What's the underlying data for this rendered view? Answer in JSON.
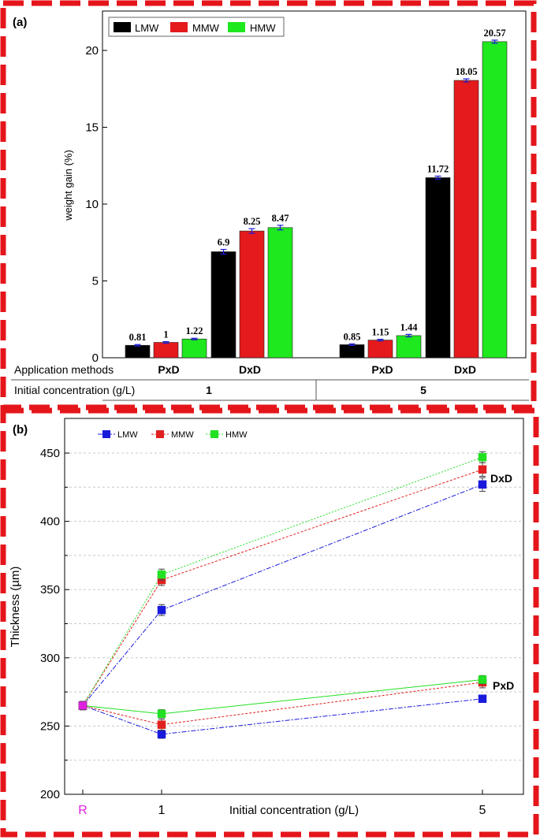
{
  "colors": {
    "frame": "#e4161b",
    "LMW": "#000000",
    "MMW": "#e41a1c",
    "HMW": "#1ee81e",
    "LMW_b": "#1a1adc",
    "MMW_b": "#e0201e",
    "HMW_b": "#22e022",
    "errorbar": "#1a1adc",
    "R_label": "#e020e0"
  },
  "panel_a": {
    "label": "(a)",
    "row_labels": {
      "methods": "Application methods",
      "concentration": "Initial concentration (g/L)"
    },
    "methods": [
      "PxD",
      "DxD",
      "PxD",
      "DxD"
    ],
    "concentrations": [
      "1",
      "5"
    ]
  },
  "panel_b": {
    "label": "(b)",
    "line_labels": {
      "upper": "DxD",
      "lower": "PxD"
    }
  },
  "chart_data": [
    {
      "type": "bar",
      "ylabel": "weight gain (%)",
      "ylim": [
        0,
        22
      ],
      "yticks": [
        0,
        5,
        10,
        15,
        20
      ],
      "legend": "top-left",
      "groups": [
        {
          "concentration": "1",
          "method": "PxD"
        },
        {
          "concentration": "1",
          "method": "DxD"
        },
        {
          "concentration": "5",
          "method": "PxD"
        },
        {
          "concentration": "5",
          "method": "DxD"
        }
      ],
      "series": [
        {
          "name": "LMW",
          "values": [
            0.81,
            6.9,
            0.85,
            11.72
          ],
          "labels": [
            "0.81",
            "6.9",
            "0.85",
            "11.72"
          ],
          "errors": [
            0.05,
            0.15,
            0.05,
            0.1
          ]
        },
        {
          "name": "MMW",
          "values": [
            1,
            8.25,
            1.15,
            18.05
          ],
          "labels": [
            "1",
            "8.25",
            "1.15",
            "18.05"
          ],
          "errors": [
            0.05,
            0.15,
            0.05,
            0.1
          ]
        },
        {
          "name": "HMW",
          "values": [
            1.22,
            8.47,
            1.44,
            20.57
          ],
          "labels": [
            "1.22",
            "8.47",
            "1.44",
            "20.57"
          ],
          "errors": [
            0.05,
            0.15,
            0.08,
            0.1
          ]
        }
      ]
    },
    {
      "type": "line",
      "xlabel": "Initial concentration (g/L)",
      "ylabel": "Thickness (µm)",
      "ylim": [
        200,
        470
      ],
      "yticks": [
        200,
        250,
        300,
        350,
        400,
        450
      ],
      "categories": [
        "R",
        "1",
        "5"
      ],
      "grid": true,
      "legend": "top-left",
      "series": [
        {
          "name": "LMW",
          "method": "DxD",
          "values": [
            265,
            335,
            427
          ],
          "errors": [
            3,
            4,
            5
          ]
        },
        {
          "name": "MMW",
          "method": "DxD",
          "values": [
            265,
            357,
            438
          ],
          "errors": [
            3,
            4,
            5
          ]
        },
        {
          "name": "HMW",
          "method": "DxD",
          "values": [
            265,
            361,
            447
          ],
          "errors": [
            3,
            4,
            4
          ]
        },
        {
          "name": "LMW",
          "method": "PxD",
          "values": [
            265,
            244,
            270
          ],
          "errors": [
            3,
            3,
            2
          ]
        },
        {
          "name": "MMW",
          "method": "PxD",
          "values": [
            265,
            251,
            282
          ],
          "errors": [
            3,
            4,
            4
          ]
        },
        {
          "name": "HMW",
          "method": "PxD",
          "values": [
            265,
            259,
            284
          ],
          "errors": [
            3,
            3,
            3
          ]
        }
      ]
    }
  ]
}
